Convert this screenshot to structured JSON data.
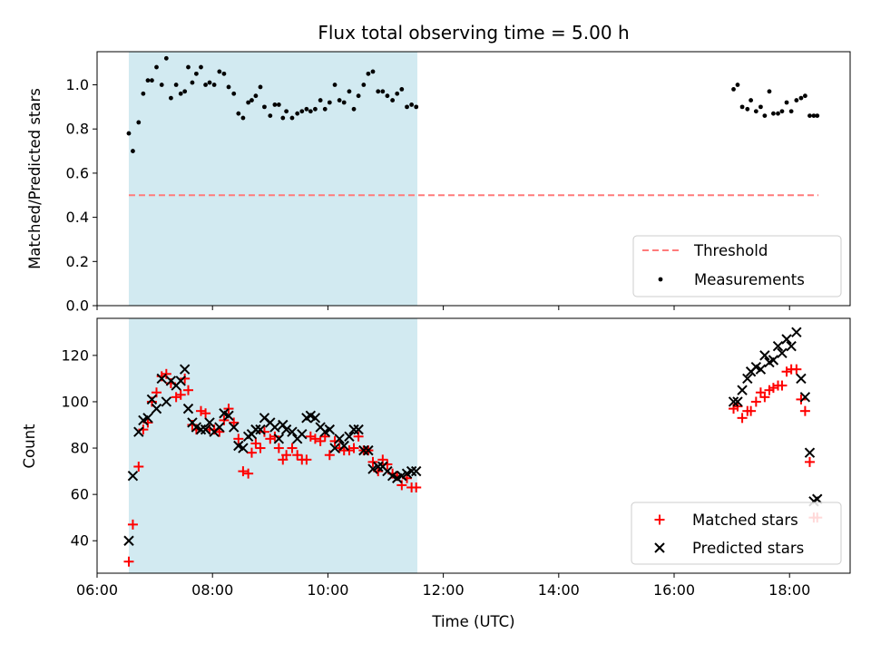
{
  "chart_data": {
    "type": "scatter",
    "title": "Flux total observing time = 5.00 h",
    "xlabel": "Time (UTC)",
    "x_unit": "hours UTC",
    "xlim": [
      6.0,
      19.05
    ],
    "xticks": [
      {
        "value": 6,
        "label": "06:00"
      },
      {
        "value": 8,
        "label": "08:00"
      },
      {
        "value": 10,
        "label": "10:00"
      },
      {
        "value": 12,
        "label": "12:00"
      },
      {
        "value": 14,
        "label": "14:00"
      },
      {
        "value": 16,
        "label": "16:00"
      },
      {
        "value": 18,
        "label": "18:00"
      }
    ],
    "shaded_span": [
      6.55,
      11.55
    ],
    "shade_color": "#add8e6",
    "panels": [
      {
        "ylabel": "Matched/Predicted stars",
        "ylim": [
          0,
          1.15
        ],
        "yticks": [
          "0.0",
          "0.2",
          "0.4",
          "0.6",
          "0.8",
          "1.0"
        ],
        "legend_placement": "lower-right",
        "threshold": {
          "name": "Threshold",
          "y": 0.5,
          "x_range": [
            6.55,
            18.5
          ],
          "color": "#ff7b7b"
        },
        "series": [
          {
            "name": "Measurements",
            "marker": "dot",
            "color": "#000000",
            "x": [
              6.55,
              6.62,
              6.72,
              6.8,
              6.88,
              6.95,
              7.03,
              7.12,
              7.2,
              7.28,
              7.37,
              7.45,
              7.52,
              7.58,
              7.65,
              7.72,
              7.8,
              7.88,
              7.95,
              8.03,
              8.12,
              8.2,
              8.28,
              8.37,
              8.45,
              8.53,
              8.62,
              8.68,
              8.75,
              8.83,
              8.9,
              9.0,
              9.08,
              9.15,
              9.22,
              9.28,
              9.38,
              9.47,
              9.55,
              9.63,
              9.7,
              9.78,
              9.87,
              9.95,
              10.03,
              10.12,
              10.2,
              10.28,
              10.37,
              10.45,
              10.53,
              10.62,
              10.7,
              10.78,
              10.87,
              10.95,
              11.03,
              11.12,
              11.2,
              11.28,
              11.37,
              11.45,
              11.53,
              17.03,
              17.1,
              17.18,
              17.27,
              17.33,
              17.42,
              17.5,
              17.57,
              17.65,
              17.72,
              17.8,
              17.87,
              17.95,
              18.03,
              18.12,
              18.2,
              18.27,
              18.35,
              18.42,
              18.48
            ],
            "y": [
              0.78,
              0.7,
              0.83,
              0.96,
              1.02,
              1.02,
              1.08,
              1.0,
              1.12,
              0.94,
              1.0,
              0.96,
              0.97,
              1.08,
              1.01,
              1.05,
              1.08,
              1.0,
              1.01,
              1.0,
              1.06,
              1.05,
              0.99,
              0.96,
              0.87,
              0.85,
              0.92,
              0.93,
              0.95,
              0.99,
              0.9,
              0.86,
              0.91,
              0.91,
              0.85,
              0.88,
              0.85,
              0.87,
              0.88,
              0.89,
              0.88,
              0.89,
              0.93,
              0.89,
              0.92,
              1.0,
              0.93,
              0.92,
              0.97,
              0.89,
              0.95,
              1.0,
              1.05,
              1.06,
              0.97,
              0.97,
              0.95,
              0.93,
              0.96,
              0.98,
              0.9,
              0.91,
              0.9,
              0.98,
              1.0,
              0.9,
              0.89,
              0.93,
              0.88,
              0.9,
              0.86,
              0.97,
              0.87,
              0.87,
              0.88,
              0.92,
              0.88,
              0.93,
              0.94,
              0.95,
              0.86,
              0.86,
              0.86
            ]
          }
        ]
      },
      {
        "ylabel": "Count",
        "ylim": [
          26,
          136
        ],
        "yticks": [
          "40",
          "60",
          "80",
          "100",
          "120"
        ],
        "legend_placement": "lower-right",
        "series": [
          {
            "name": "Matched stars",
            "marker": "plus",
            "color": "#ff0000",
            "x": [
              6.55,
              6.62,
              6.72,
              6.8,
              6.88,
              6.95,
              7.03,
              7.12,
              7.2,
              7.28,
              7.37,
              7.45,
              7.52,
              7.58,
              7.65,
              7.72,
              7.8,
              7.88,
              7.95,
              8.03,
              8.12,
              8.2,
              8.28,
              8.37,
              8.45,
              8.53,
              8.62,
              8.68,
              8.75,
              8.83,
              8.9,
              9.0,
              9.08,
              9.15,
              9.22,
              9.28,
              9.38,
              9.47,
              9.55,
              9.63,
              9.7,
              9.78,
              9.87,
              9.95,
              10.03,
              10.12,
              10.2,
              10.28,
              10.37,
              10.45,
              10.53,
              10.62,
              10.7,
              10.78,
              10.87,
              10.95,
              11.03,
              11.12,
              11.2,
              11.28,
              11.37,
              11.45,
              11.53,
              17.03,
              17.1,
              17.18,
              17.27,
              17.33,
              17.42,
              17.5,
              17.57,
              17.65,
              17.72,
              17.8,
              17.87,
              17.95,
              18.03,
              18.12,
              18.2,
              18.27,
              18.35,
              18.42,
              18.48
            ],
            "y": [
              31,
              47,
              72,
              88,
              91,
              100,
              104,
              111,
              112,
              108,
              102,
              103,
              110,
              105,
              90,
              88,
              96,
              95,
              88,
              88,
              87,
              92,
              97,
              91,
              84,
              70,
              69,
              78,
              82,
              80,
              87,
              84,
              85,
              80,
              75,
              77,
              80,
              77,
              75,
              75,
              85,
              84,
              83,
              85,
              77,
              83,
              80,
              79,
              79,
              80,
              85,
              79,
              79,
              74,
              70,
              75,
              73,
              69,
              68,
              64,
              67,
              63,
              63,
              97,
              98,
              93,
              96,
              96,
              100,
              104,
              102,
              105,
              106,
              107,
              107,
              113,
              114,
              114,
              101,
              96,
              74,
              50,
              50
            ]
          },
          {
            "name": "Predicted stars",
            "marker": "x",
            "color": "#000000",
            "x": [
              6.55,
              6.62,
              6.72,
              6.8,
              6.88,
              6.95,
              7.03,
              7.12,
              7.2,
              7.28,
              7.37,
              7.45,
              7.52,
              7.58,
              7.65,
              7.72,
              7.8,
              7.88,
              7.95,
              8.03,
              8.12,
              8.2,
              8.28,
              8.37,
              8.45,
              8.53,
              8.62,
              8.68,
              8.75,
              8.83,
              8.9,
              9.0,
              9.08,
              9.15,
              9.22,
              9.28,
              9.38,
              9.47,
              9.55,
              9.63,
              9.7,
              9.78,
              9.87,
              9.95,
              10.03,
              10.12,
              10.2,
              10.28,
              10.37,
              10.45,
              10.53,
              10.62,
              10.7,
              10.78,
              10.87,
              10.95,
              11.03,
              11.12,
              11.2,
              11.28,
              11.37,
              11.45,
              11.53,
              17.03,
              17.1,
              17.18,
              17.27,
              17.33,
              17.42,
              17.5,
              17.57,
              17.65,
              17.72,
              17.8,
              17.87,
              17.95,
              18.03,
              18.12,
              18.2,
              18.27,
              18.35,
              18.42,
              18.48
            ],
            "y": [
              40,
              68,
              87,
              92,
              93,
              101,
              97,
              110,
              100,
              109,
              107,
              109,
              114,
              97,
              91,
              89,
              88,
              88,
              91,
              87,
              89,
              95,
              94,
              89,
              81,
              80,
              85,
              86,
              88,
              88,
              93,
              91,
              89,
              84,
              90,
              88,
              87,
              84,
              86,
              93,
              94,
              93,
              89,
              87,
              88,
              80,
              84,
              81,
              85,
              88,
              88,
              79,
              79,
              71,
              72,
              72,
              70,
              68,
              67,
              68,
              69,
              70,
              70,
              100,
              100,
              105,
              110,
              113,
              115,
              114,
              120,
              117,
              118,
              124,
              121,
              127,
              124,
              130,
              110,
              102,
              78,
              57,
              58
            ]
          }
        ]
      }
    ]
  }
}
